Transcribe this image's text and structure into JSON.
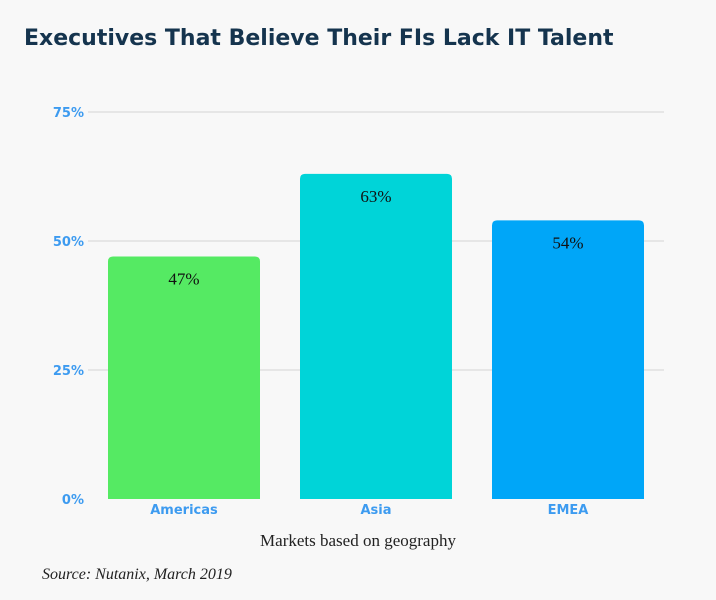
{
  "title": "Executives That Believe Their FIs Lack IT Talent",
  "source": "Source: Nutanix, March 2019",
  "colors": {
    "gridline": "#d4d4d4",
    "tick_label": "#3d9bf0",
    "data_label": "#111111",
    "xlabel": "#222222"
  },
  "chart_data": {
    "type": "bar",
    "categories": [
      "Americas",
      "Asia",
      "EMEA"
    ],
    "values": [
      47,
      63,
      54
    ],
    "data_labels": [
      "47%",
      "63%",
      "54%"
    ],
    "bar_colors": [
      "#55ea63",
      "#00d4d8",
      "#00a6f8"
    ],
    "title": "Executives That Believe Their FIs Lack IT Talent",
    "xlabel": "Markets based on geography",
    "ylabel": "",
    "ylim": [
      0,
      75
    ],
    "yticks": [
      0,
      25,
      50,
      75
    ],
    "ytick_labels": [
      "0%",
      "25%",
      "50%",
      "75%"
    ],
    "grid": true,
    "legend": "none"
  }
}
